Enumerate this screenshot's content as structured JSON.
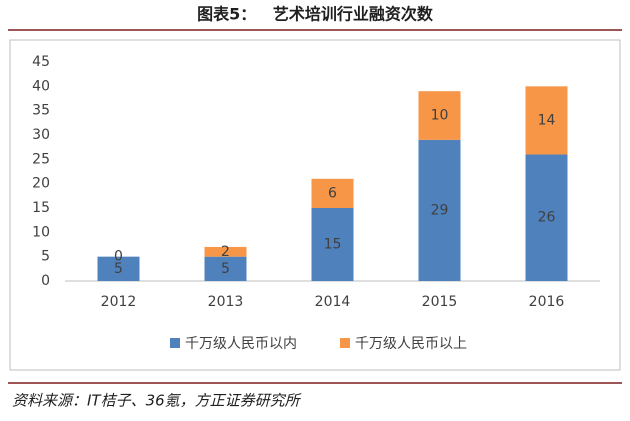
{
  "chart_data": {
    "type": "stacked_bar",
    "title": "图表5：   艺术培训行业融资次数",
    "categories": [
      "2012",
      "2013",
      "2014",
      "2015",
      "2016"
    ],
    "series": [
      {
        "name": "千万级人民币以内",
        "color": "#4f81bd",
        "values": [
          5,
          5,
          15,
          29,
          26
        ]
      },
      {
        "name": "千万级人民币以上",
        "color": "#f79646",
        "values": [
          0,
          2,
          6,
          10,
          14
        ]
      }
    ],
    "ylim": [
      0,
      45
    ],
    "yticks": [
      0,
      5,
      10,
      15,
      20,
      25,
      30,
      35,
      40,
      45
    ],
    "legend": "bottom",
    "source": "资料来源：IT桔子、36氪，方正证券研究所"
  }
}
